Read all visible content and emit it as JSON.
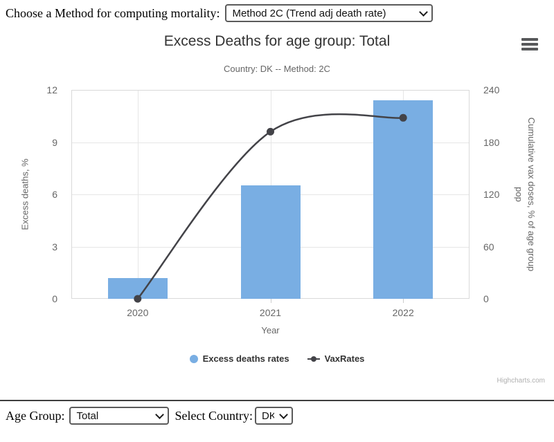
{
  "method_control": {
    "label": "Choose a Method for computing mortality:",
    "value": "Method 2C (Trend adj death rate)"
  },
  "chart": {
    "title": "Excess Deaths for age group: Total",
    "subtitle": "Country: DK -- Method: 2C",
    "credits": "Highcharts.com"
  },
  "axis_titles": {
    "left": "Excess deaths, %",
    "right_line1": "Cumulative vax doses, % of age group",
    "right_line2": "pop",
    "x": "Year"
  },
  "legend": {
    "items": [
      {
        "label": "Excess deaths rates"
      },
      {
        "label": "VaxRates"
      }
    ]
  },
  "chart_data": {
    "type": "bar+line dual-axis combo",
    "title": "Excess Deaths for age group: Total",
    "subtitle": "Country: DK -- Method: 2C",
    "xlabel": "Year",
    "categories": [
      "2020",
      "2021",
      "2022"
    ],
    "series": [
      {
        "name": "Excess deaths rates",
        "type": "bar",
        "y_axis": "left",
        "color": "#79aee3",
        "values": [
          1.2,
          6.5,
          11.4
        ]
      },
      {
        "name": "VaxRates",
        "type": "spline",
        "y_axis": "right",
        "color": "#434348",
        "values": [
          0,
          192,
          208
        ]
      }
    ],
    "ylabel_left": "Excess deaths, %",
    "ylim_left": [
      0,
      12
    ],
    "yticks_left": [
      0,
      3,
      6,
      9,
      12
    ],
    "ylabel_right": "Cumulative vax doses, % of age group pop",
    "ylim_right": [
      0,
      240
    ],
    "yticks_right": [
      0,
      60,
      120,
      180,
      240
    ],
    "grid": true,
    "legend_position": "bottom-center"
  },
  "bottom_controls": {
    "age_label": "Age Group:",
    "age_value": "Total",
    "country_label": "Select Country:",
    "country_value": "DK"
  },
  "colors": {
    "bar": "#79aee3",
    "line": "#434348",
    "grid": "#e6e6e6",
    "axis_border": "#d9d9d9",
    "tick_mark": "#cccccc",
    "title": "#333333",
    "muted_text": "#666666",
    "credits": "#b0b0b0"
  }
}
